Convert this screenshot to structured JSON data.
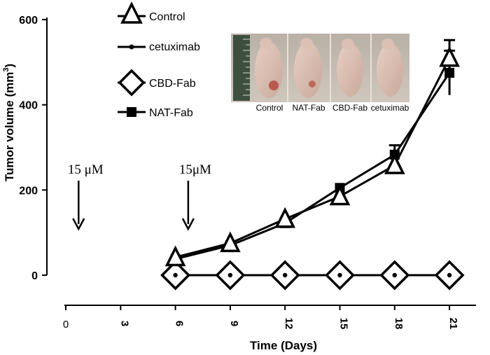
{
  "chart_data": {
    "type": "line",
    "xlabel": "Time (Days)",
    "ylabel": "Tumor volume (mm",
    "ylabel_sup": "3",
    "ylabel_close": ")",
    "x_ticks": [
      0,
      3,
      6,
      9,
      12,
      15,
      18,
      21
    ],
    "y_ticks": [
      0,
      200,
      400,
      600
    ],
    "xlim": [
      0,
      22
    ],
    "ylim": [
      0,
      600
    ],
    "x": [
      6,
      9,
      12,
      15,
      18,
      21
    ],
    "series": [
      {
        "name": "Control",
        "marker": "open-triangle",
        "values": [
          42,
          75,
          132,
          185,
          258,
          510
        ],
        "errors": [
          0,
          0,
          0,
          0,
          0,
          42
        ]
      },
      {
        "name": "cetuximab",
        "marker": "small-dot",
        "values": [
          0,
          0,
          0,
          0,
          0,
          0
        ],
        "errors": [
          0,
          0,
          0,
          0,
          0,
          0
        ]
      },
      {
        "name": "CBD-Fab",
        "marker": "open-diamond",
        "values": [
          0,
          0,
          0,
          0,
          0,
          0
        ],
        "errors": [
          0,
          0,
          0,
          0,
          0,
          0
        ]
      },
      {
        "name": "NAT-Fab",
        "marker": "filled-square",
        "values": [
          38,
          70,
          122,
          205,
          283,
          475
        ],
        "errors": [
          0,
          0,
          0,
          0,
          22,
          52
        ]
      }
    ],
    "annotations": [
      {
        "text": "15 μM",
        "day": 0.7
      },
      {
        "text": "15μM",
        "day": 6.7
      }
    ],
    "inset_photo_labels": [
      "Control",
      "NAT-Fab",
      "CBD-Fab",
      "cetuximab"
    ]
  }
}
